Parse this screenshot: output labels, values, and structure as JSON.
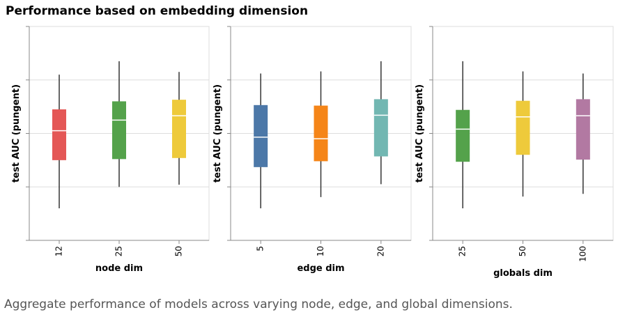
{
  "title": "Performance based on embedding dimension",
  "caption": "Aggregate performance of models across varying node, edge, and global dimensions.",
  "chart_data": [
    {
      "type": "boxplot",
      "xlabel": "node dim",
      "ylabel": "test AUC (pungent)",
      "categories": [
        "12",
        "25",
        "50"
      ],
      "colors": [
        "#e45756",
        "#54a24b",
        "#eeca3b"
      ],
      "ylim": [
        0,
        4
      ],
      "yticks": [
        1,
        2,
        3
      ],
      "grid": true,
      "boxes": [
        {
          "min": 0.6,
          "q1": 1.5,
          "median": 2.05,
          "q3": 2.45,
          "max": 3.1
        },
        {
          "min": 1.0,
          "q1": 1.52,
          "median": 2.25,
          "q3": 2.6,
          "max": 3.35
        },
        {
          "min": 1.04,
          "q1": 1.54,
          "median": 2.33,
          "q3": 2.63,
          "max": 3.15
        }
      ]
    },
    {
      "type": "boxplot",
      "xlabel": "edge dim",
      "ylabel": "test AUC (pungent)",
      "categories": [
        "5",
        "10",
        "20"
      ],
      "colors": [
        "#4c78a8",
        "#f58518",
        "#72b7b2"
      ],
      "ylim": [
        0,
        4
      ],
      "yticks": [
        1,
        2,
        3
      ],
      "grid": true,
      "boxes": [
        {
          "min": 0.6,
          "q1": 1.37,
          "median": 1.93,
          "q3": 2.53,
          "max": 3.12
        },
        {
          "min": 0.81,
          "q1": 1.48,
          "median": 1.9,
          "q3": 2.52,
          "max": 3.16
        },
        {
          "min": 1.05,
          "q1": 1.57,
          "median": 2.34,
          "q3": 2.64,
          "max": 3.35
        }
      ]
    },
    {
      "type": "boxplot",
      "xlabel": "globals dim",
      "ylabel": "test AUC (pungent)",
      "categories": [
        "25",
        "50",
        "100"
      ],
      "colors": [
        "#54a24b",
        "#eeca3b",
        "#b279a2"
      ],
      "ylim": [
        0,
        4
      ],
      "yticks": [
        1,
        2,
        3
      ],
      "grid": true,
      "boxes": [
        {
          "min": 0.6,
          "q1": 1.47,
          "median": 2.08,
          "q3": 2.44,
          "max": 3.35
        },
        {
          "min": 0.82,
          "q1": 1.6,
          "median": 2.31,
          "q3": 2.61,
          "max": 3.16
        },
        {
          "min": 0.87,
          "q1": 1.51,
          "median": 2.33,
          "q3": 2.64,
          "max": 3.12
        }
      ]
    }
  ]
}
